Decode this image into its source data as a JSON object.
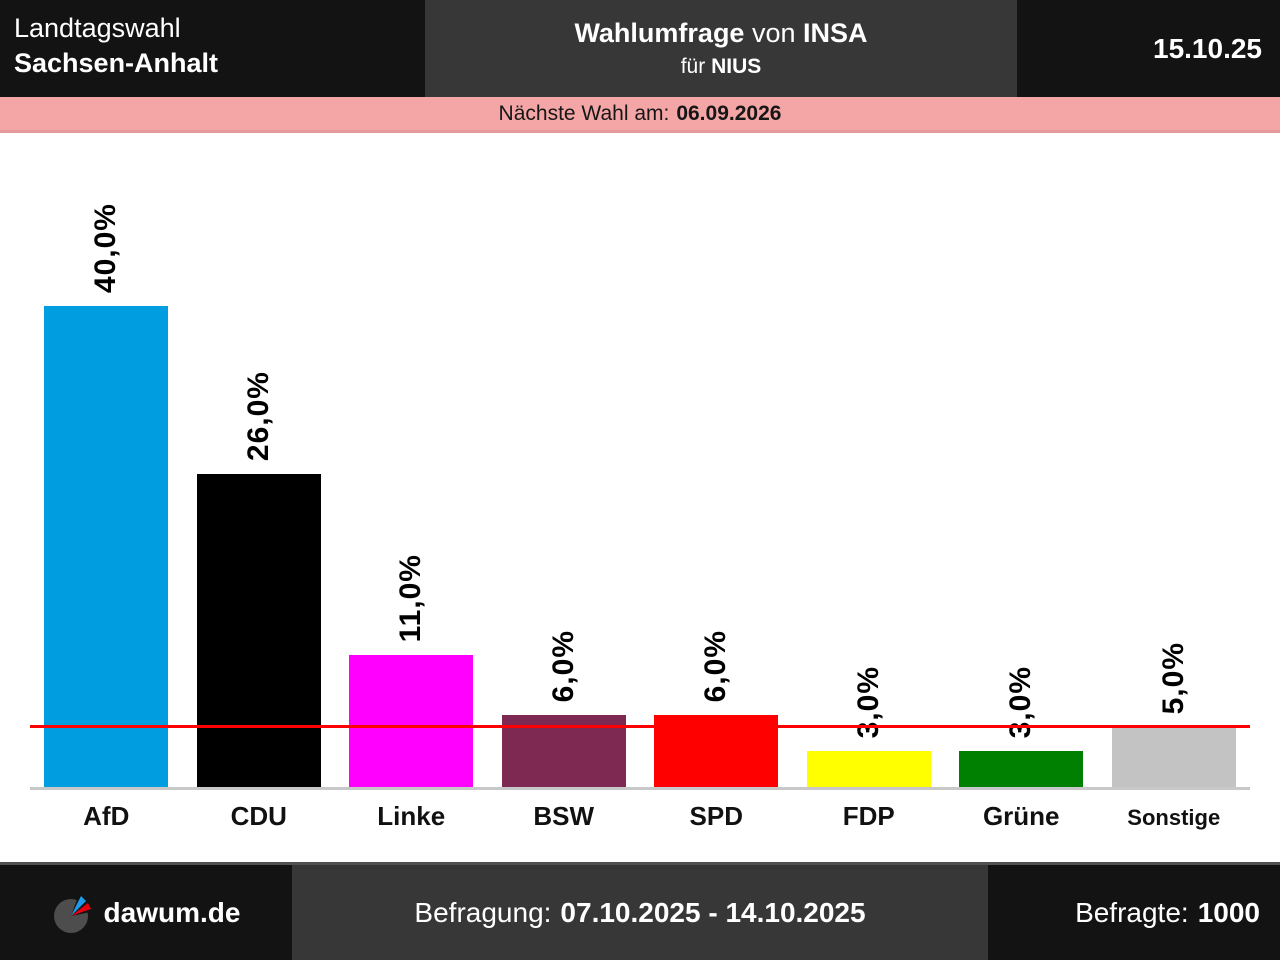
{
  "header": {
    "election": "Landtagswahl",
    "region": "Sachsen-Anhalt",
    "poll_word": "Wahlumfrage",
    "connector": "von",
    "institute": "INSA",
    "for_word": "für",
    "client": "NIUS",
    "date": "15.10.25"
  },
  "banner": {
    "label": "Nächste Wahl am:",
    "date": "06.09.2026",
    "background_color": "#F4A6A6"
  },
  "chart_data": {
    "type": "bar",
    "title": "Wahlumfrage von INSA für NIUS - Landtagswahl Sachsen-Anhalt",
    "categories": [
      "AfD",
      "CDU",
      "Linke",
      "BSW",
      "SPD",
      "FDP",
      "Grüne",
      "Sonstige"
    ],
    "values": [
      40.0,
      26.0,
      11.0,
      6.0,
      6.0,
      3.0,
      3.0,
      5.0
    ],
    "value_labels": [
      "40,0%",
      "26,0%",
      "11,0%",
      "6,0%",
      "6,0%",
      "3,0%",
      "3,0%",
      "5,0%"
    ],
    "bar_colors": [
      "#009EE0",
      "#000000",
      "#FF00FF",
      "#7D2951",
      "#FF0000",
      "#FFFF00",
      "#008000",
      "#C3C3C3"
    ],
    "threshold": {
      "value": 5.0,
      "color": "#FF0000",
      "meaning": "5%-Hürde"
    },
    "xlabel": "",
    "ylabel": "",
    "ylim": [
      0,
      54
    ],
    "grid": false,
    "legend": false,
    "value_label_rotation": -90,
    "axis_line_color": "#C8C8C8"
  },
  "footer": {
    "site": "dawum.de",
    "survey_label": "Befragung:",
    "survey_period": "07.10.2025 - 14.10.2025",
    "respondents_label": "Befragte:",
    "respondents_value": "1000"
  }
}
